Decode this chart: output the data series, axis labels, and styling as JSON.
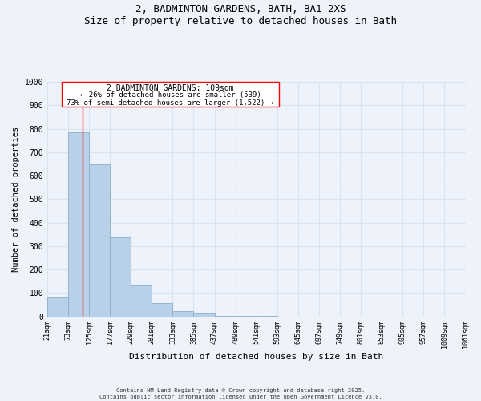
{
  "title_line1": "2, BADMINTON GARDENS, BATH, BA1 2XS",
  "title_line2": "Size of property relative to detached houses in Bath",
  "xlabel": "Distribution of detached houses by size in Bath",
  "ylabel": "Number of detached properties",
  "bin_edges": [
    21,
    73,
    125,
    177,
    229,
    281,
    333,
    385,
    437,
    489,
    541,
    593,
    645,
    697,
    749,
    801,
    853,
    905,
    957,
    1009,
    1061
  ],
  "bar_heights": [
    83,
    785,
    648,
    336,
    135,
    58,
    22,
    15,
    3,
    3,
    1,
    0,
    0,
    0,
    0,
    0,
    0,
    0,
    0,
    0
  ],
  "bar_color": "#b8d0e8",
  "bar_edge_color": "#8ab0d0",
  "ylim": [
    0,
    1000
  ],
  "xlim": [
    21,
    1061
  ],
  "red_line_x": 109,
  "annotation_title": "2 BADMINTON GARDENS: 109sqm",
  "annotation_line2": "← 26% of detached houses are smaller (539)",
  "annotation_line3": "73% of semi-detached houses are larger (1,522) →",
  "grid_color": "#d8e4f0",
  "background_color": "#eef2fa",
  "footer_line1": "Contains HM Land Registry data © Crown copyright and database right 2025.",
  "footer_line2": "Contains public sector information licensed under the Open Government Licence v3.0.",
  "tick_labels": [
    "21sqm",
    "73sqm",
    "125sqm",
    "177sqm",
    "229sqm",
    "281sqm",
    "333sqm",
    "385sqm",
    "437sqm",
    "489sqm",
    "541sqm",
    "593sqm",
    "645sqm",
    "697sqm",
    "749sqm",
    "801sqm",
    "853sqm",
    "905sqm",
    "957sqm",
    "1009sqm",
    "1061sqm"
  ],
  "yticks": [
    0,
    100,
    200,
    300,
    400,
    500,
    600,
    700,
    800,
    900,
    1000
  ]
}
